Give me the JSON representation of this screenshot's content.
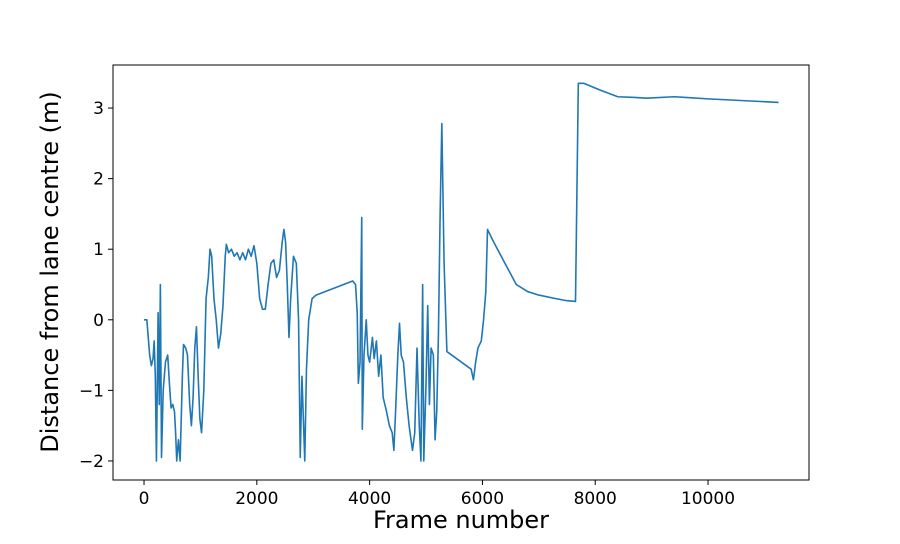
{
  "chart_data": {
    "type": "line",
    "x_label": "Frame number",
    "y_label": "Distance from lane centre (m)",
    "xlim": [
      -550,
      11790
    ],
    "ylim": [
      -2.27,
      3.61
    ],
    "xticks": [
      0,
      2000,
      4000,
      6000,
      8000,
      10000
    ],
    "yticks": [
      {
        "value": -2,
        "label": "−2"
      },
      {
        "value": -1,
        "label": "−1"
      },
      0,
      1,
      2,
      3
    ],
    "grid": false,
    "series": [
      {
        "color": "#1f77b4",
        "x": [
          0,
          50,
          100,
          130,
          160,
          180,
          200,
          220,
          250,
          270,
          290,
          310,
          340,
          380,
          420,
          450,
          480,
          510,
          540,
          560,
          580,
          610,
          640,
          680,
          700,
          740,
          770,
          810,
          840,
          870,
          900,
          930,
          960,
          990,
          1020,
          1060,
          1100,
          1140,
          1170,
          1200,
          1240,
          1280,
          1320,
          1360,
          1400,
          1440,
          1460,
          1500,
          1550,
          1600,
          1650,
          1700,
          1750,
          1800,
          1850,
          1900,
          1950,
          2000,
          2050,
          2100,
          2150,
          2200,
          2250,
          2300,
          2350,
          2400,
          2450,
          2480,
          2510,
          2540,
          2570,
          2600,
          2650,
          2700,
          2740,
          2770,
          2800,
          2850,
          2880,
          2920,
          2980,
          3050,
          3700,
          3750,
          3780,
          3800,
          3830,
          3860,
          3870,
          3900,
          3940,
          3970,
          4000,
          4050,
          4080,
          4120,
          4160,
          4200,
          4240,
          4300,
          4350,
          4400,
          4430,
          4460,
          4500,
          4530,
          4560,
          4600,
          4650,
          4700,
          4760,
          4800,
          4840,
          4880,
          4910,
          4940,
          4960,
          5000,
          5030,
          5060,
          5090,
          5130,
          5160,
          5190,
          5220,
          5250,
          5280,
          5320,
          5370,
          5800,
          5840,
          5880,
          5920,
          5980,
          6020,
          6060,
          6090,
          6200,
          6400,
          6600,
          6800,
          7000,
          7300,
          7500,
          7650,
          7700,
          7800,
          8100,
          8400,
          8700,
          8900,
          9400,
          9600,
          10000,
          11250
        ],
        "values": [
          0,
          0,
          -0.5,
          -0.65,
          -0.55,
          -0.3,
          -0.8,
          -2,
          0.1,
          -1.2,
          0.5,
          -1.95,
          -1.0,
          -0.6,
          -0.5,
          -0.9,
          -1.25,
          -1.2,
          -1.3,
          -1.6,
          -2.0,
          -1.7,
          -2.0,
          -0.8,
          -0.35,
          -0.4,
          -0.5,
          -1.2,
          -1.5,
          -1.1,
          -0.4,
          -0.1,
          -0.8,
          -1.4,
          -1.6,
          -1.0,
          0.3,
          0.6,
          1.0,
          0.9,
          0.3,
          0,
          -0.4,
          -0.2,
          0.2,
          0.9,
          1.07,
          0.95,
          1.0,
          0.9,
          0.95,
          0.85,
          0.95,
          0.85,
          1.0,
          0.9,
          1.05,
          0.8,
          0.3,
          0.15,
          0.15,
          0.5,
          0.8,
          0.85,
          0.6,
          0.7,
          1.1,
          1.28,
          1.1,
          0.5,
          -0.25,
          0.3,
          0.9,
          0.8,
          0,
          -1.95,
          -0.8,
          -2.0,
          -0.7,
          0,
          0.3,
          0.35,
          0.55,
          0.5,
          0.1,
          -0.9,
          -0.6,
          1.45,
          -1.55,
          -0.5,
          0,
          -0.5,
          -0.6,
          -0.25,
          -0.55,
          -0.3,
          -0.8,
          -0.5,
          -1.1,
          -1.3,
          -1.5,
          -1.6,
          -1.85,
          -1.3,
          -0.5,
          -0.05,
          -0.5,
          -0.6,
          -1.1,
          -1.5,
          -1.85,
          -1.6,
          -0.4,
          -1.5,
          -2.0,
          0.5,
          -2.0,
          -0.9,
          0.2,
          -1.2,
          -0.4,
          -0.5,
          -1.7,
          -1.3,
          -0.2,
          1.5,
          2.78,
          0.8,
          -0.45,
          -0.7,
          -0.85,
          -0.6,
          -0.4,
          -0.3,
          0,
          0.4,
          1.28,
          1.1,
          0.8,
          0.5,
          0.4,
          0.35,
          0.3,
          0.27,
          0.26,
          3.35,
          3.35,
          3.25,
          3.16,
          3.15,
          3.14,
          3.16,
          3.15,
          3.13,
          3.08
        ]
      }
    ]
  }
}
